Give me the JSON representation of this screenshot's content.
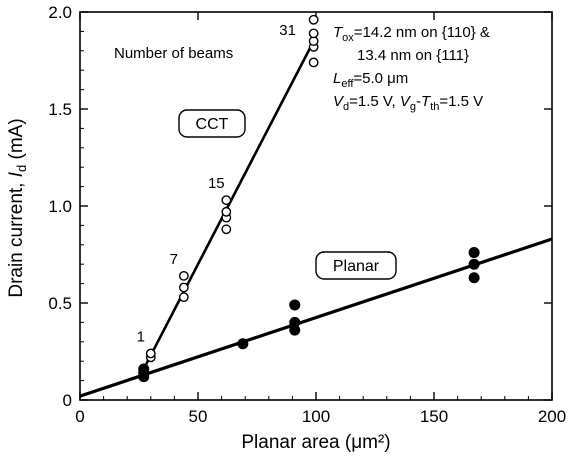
{
  "chart_data": {
    "type": "scatter",
    "title": "",
    "xlabel": "Planar area (μm²)",
    "ylabel": "Drain current, Iₔ (mA)",
    "xlim": [
      0,
      200
    ],
    "ylim": [
      0,
      2.0
    ],
    "x_ticks": [
      "0",
      "50",
      "100",
      "150",
      "200"
    ],
    "y_ticks": [
      "0",
      "0.5",
      "1.0",
      "1.5",
      "2.0"
    ],
    "grid": false,
    "series": [
      {
        "name": "CCT",
        "marker": "open-circle",
        "points": [
          {
            "x": 30,
            "y": 0.22
          },
          {
            "x": 30,
            "y": 0.24
          },
          {
            "x": 44,
            "y": 0.53
          },
          {
            "x": 44,
            "y": 0.58
          },
          {
            "x": 44,
            "y": 0.64
          },
          {
            "x": 62,
            "y": 0.88
          },
          {
            "x": 62,
            "y": 0.94
          },
          {
            "x": 62,
            "y": 0.97
          },
          {
            "x": 62,
            "y": 1.03
          },
          {
            "x": 99,
            "y": 1.74
          },
          {
            "x": 99,
            "y": 1.82
          },
          {
            "x": 99,
            "y": 1.85
          },
          {
            "x": 99,
            "y": 1.89
          },
          {
            "x": 99,
            "y": 1.96
          }
        ],
        "fit_line": {
          "x": [
            27,
            99
          ],
          "y": [
            0.16,
            1.85
          ]
        }
      },
      {
        "name": "Planar",
        "marker": "filled-circle",
        "points": [
          {
            "x": 27,
            "y": 0.12
          },
          {
            "x": 27,
            "y": 0.14
          },
          {
            "x": 27,
            "y": 0.16
          },
          {
            "x": 69,
            "y": 0.29
          },
          {
            "x": 91,
            "y": 0.36
          },
          {
            "x": 91,
            "y": 0.4
          },
          {
            "x": 91,
            "y": 0.49
          },
          {
            "x": 167,
            "y": 0.63
          },
          {
            "x": 167,
            "y": 0.7
          },
          {
            "x": 167,
            "y": 0.76
          }
        ],
        "fit_line": {
          "x": [
            0,
            200
          ],
          "y": [
            0.02,
            0.83
          ]
        }
      }
    ],
    "annotations": {
      "beams_heading": "Number of beams",
      "beam_counts": [
        {
          "label": "1",
          "x": 30,
          "y": 0.24
        },
        {
          "label": "7",
          "x": 44,
          "y": 0.64
        },
        {
          "label": "15",
          "x": 62,
          "y": 1.03
        },
        {
          "label": "31",
          "x": 99,
          "y": 1.82
        }
      ],
      "conditions": {
        "tox": {
          "sym": "T",
          "sub": "ox",
          "rest": "=14.2 nm on {110} &"
        },
        "tox2": "13.4 nm on {111}",
        "leff": {
          "sym": "L",
          "sub": "eff",
          "rest": "=5.0 μm"
        },
        "bias": {
          "sym1": "V",
          "sub1": "d",
          "mid": "=1.5 V, ",
          "sym2": "V",
          "sub2": "g",
          "dash": "-",
          "sym3": "T",
          "sub3": "th",
          "rest": "=1.5 V"
        }
      }
    }
  }
}
